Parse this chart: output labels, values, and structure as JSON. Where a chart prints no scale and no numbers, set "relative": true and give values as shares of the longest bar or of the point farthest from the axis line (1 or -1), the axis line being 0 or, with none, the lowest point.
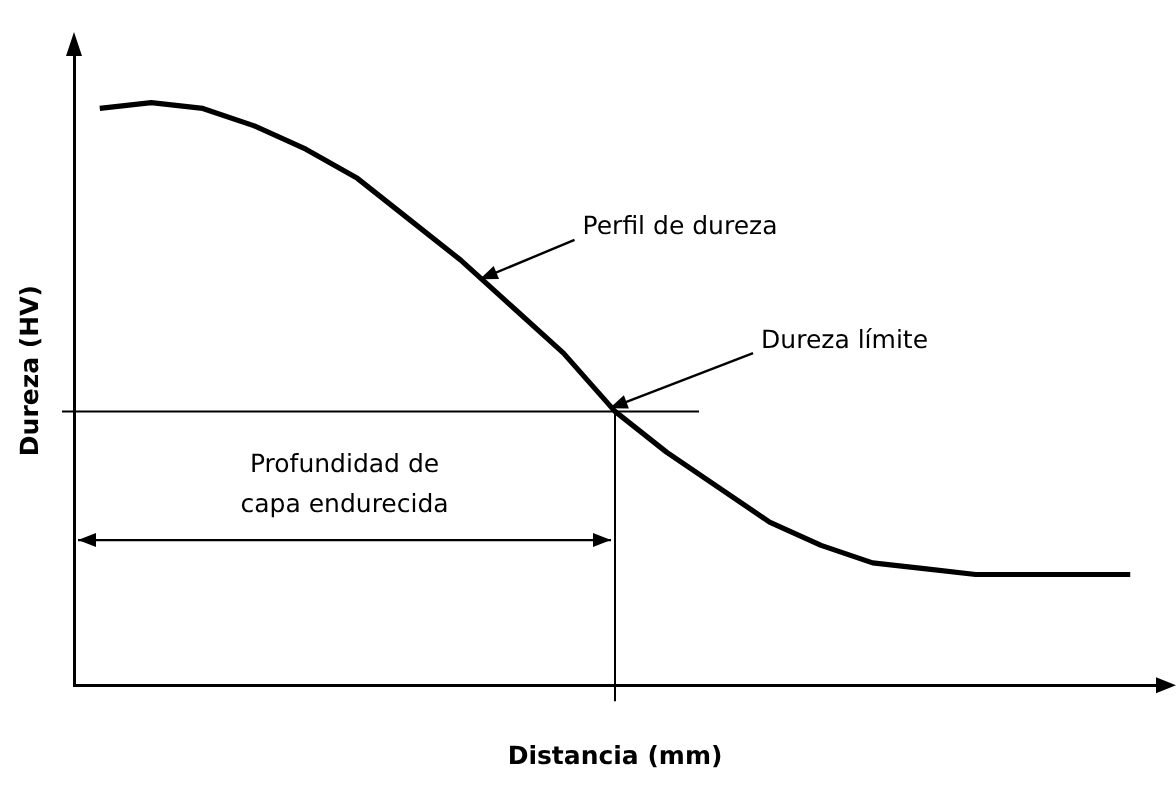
{
  "chart_data": {
    "type": "line",
    "relative": true,
    "xlabel": "Distancia (mm)",
    "ylabel": "Dureza (HV)",
    "categories": [
      null,
      null,
      null,
      null,
      null,
      null,
      null,
      null,
      null,
      null,
      null,
      null,
      null,
      null,
      null,
      null,
      null,
      null,
      null,
      null,
      null
    ],
    "series": [
      {
        "color": "#000000",
        "values": [
          0.99,
          1,
          0.99,
          0.96,
          0.92,
          0.87,
          0.8,
          0.73,
          0.65,
          0.57,
          0.47,
          0.4,
          0.34,
          0.28,
          0.24,
          0.21,
          0.2,
          0.19,
          0.19,
          0.19,
          0.19
        ]
      }
    ],
    "ref_lines": [
      {
        "axis": "y",
        "value": 0.47,
        "color": "#000000"
      }
    ],
    "annotations": [
      "Perfil de dureza",
      "Dureza límite",
      "Profundidad de\ncapa endurecida"
    ]
  }
}
